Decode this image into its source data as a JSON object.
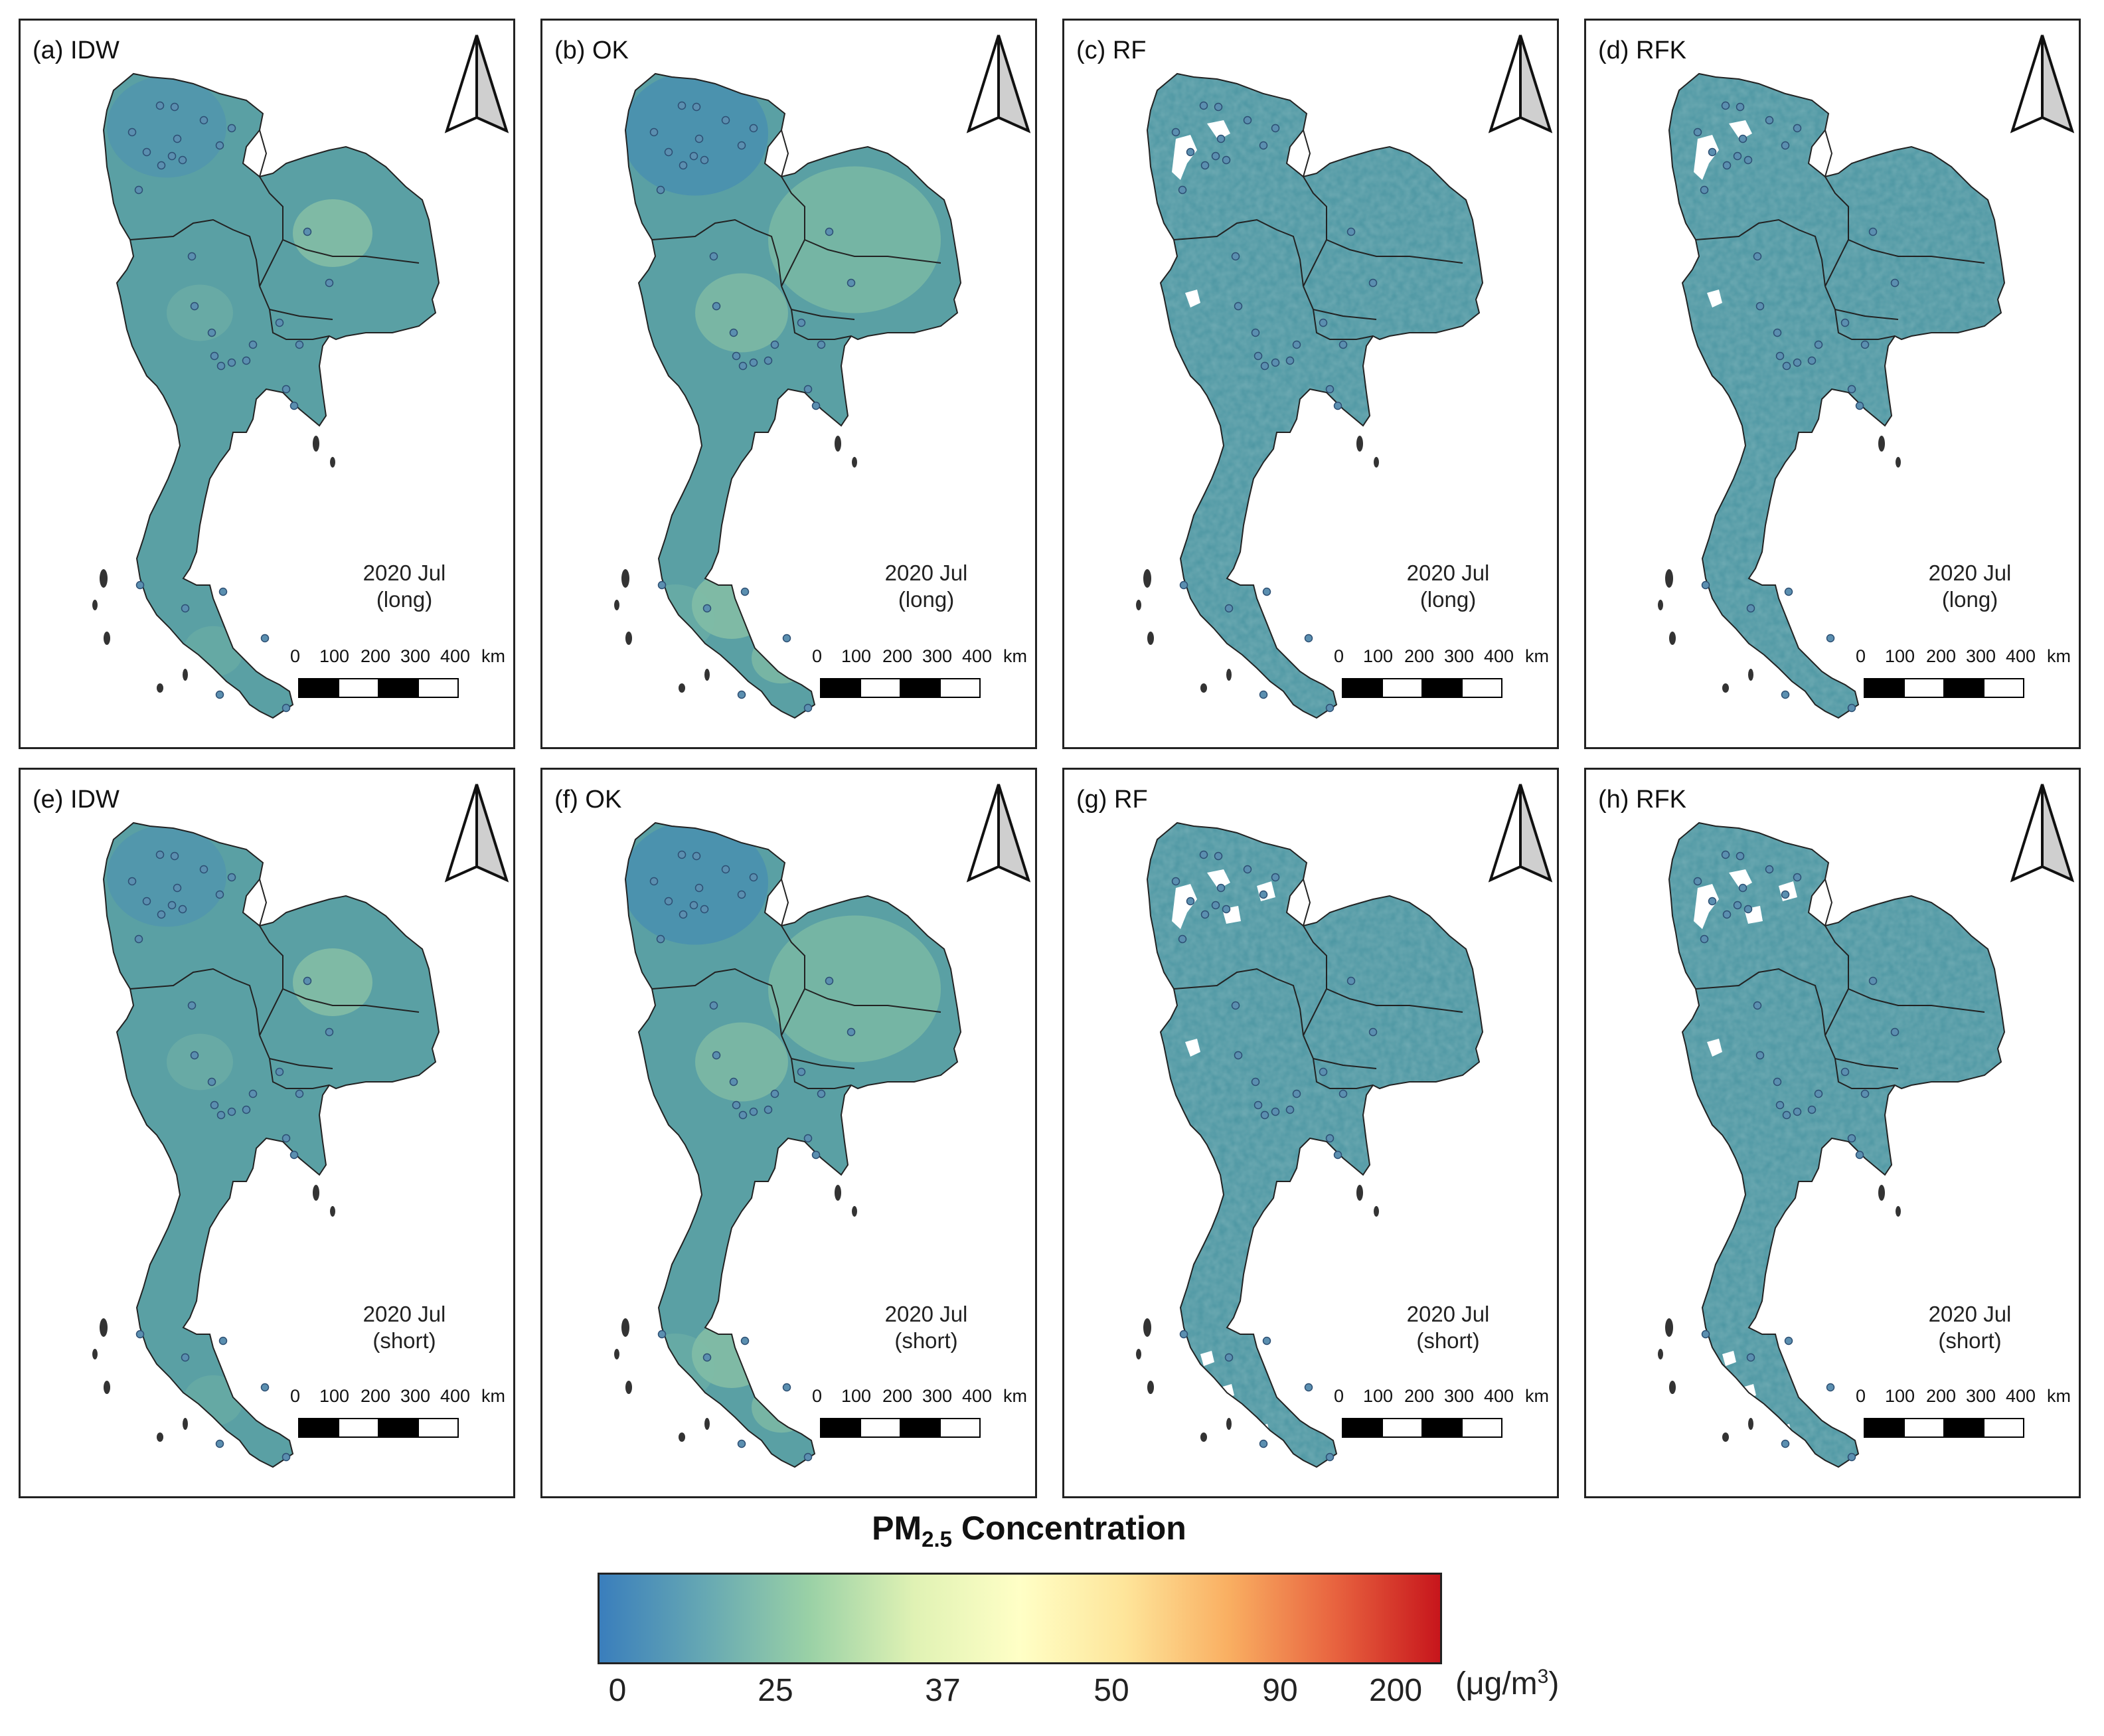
{
  "panels": [
    {
      "label": "(a) IDW",
      "date": "2020 Jul",
      "term": "(long)",
      "method": "idw",
      "gaps": 0
    },
    {
      "label": "(b) OK",
      "date": "2020 Jul",
      "term": "(long)",
      "method": "ok",
      "gaps": 0
    },
    {
      "label": "(c) RF",
      "date": "2020 Jul",
      "term": "(long)",
      "method": "rf",
      "gaps": 1
    },
    {
      "label": "(d) RFK",
      "date": "2020 Jul",
      "term": "(long)",
      "method": "rf",
      "gaps": 1
    },
    {
      "label": "(e) IDW",
      "date": "2020 Jul",
      "term": "(short)",
      "method": "idw",
      "gaps": 0
    },
    {
      "label": "(f) OK",
      "date": "2020 Jul",
      "term": "(short)",
      "method": "ok",
      "gaps": 0
    },
    {
      "label": "(g) RF",
      "date": "2020 Jul",
      "term": "(short)",
      "method": "rf",
      "gaps": 2
    },
    {
      "label": "(h) RFK",
      "date": "2020 Jul",
      "term": "(short)",
      "method": "rf",
      "gaps": 2
    }
  ],
  "scale": {
    "ticks": [
      "0",
      "100",
      "200",
      "300",
      "400"
    ],
    "unit": "km"
  },
  "legend": {
    "title_main": "PM",
    "title_sub": "2.5",
    "title_rest": " Concentration",
    "ticks": [
      "0",
      "25",
      "37",
      "50",
      "90",
      "200"
    ],
    "unit_base": "(μg/m",
    "unit_sup": "3",
    "unit_close": ")",
    "colors": [
      "#3a7ebc",
      "#66a8b3",
      "#9ad1a6",
      "#e0f2b4",
      "#ffffc6",
      "#fee59a",
      "#f9ae61",
      "#e8633f",
      "#c7161c"
    ]
  },
  "icons": {
    "north": "north-arrow-icon"
  }
}
